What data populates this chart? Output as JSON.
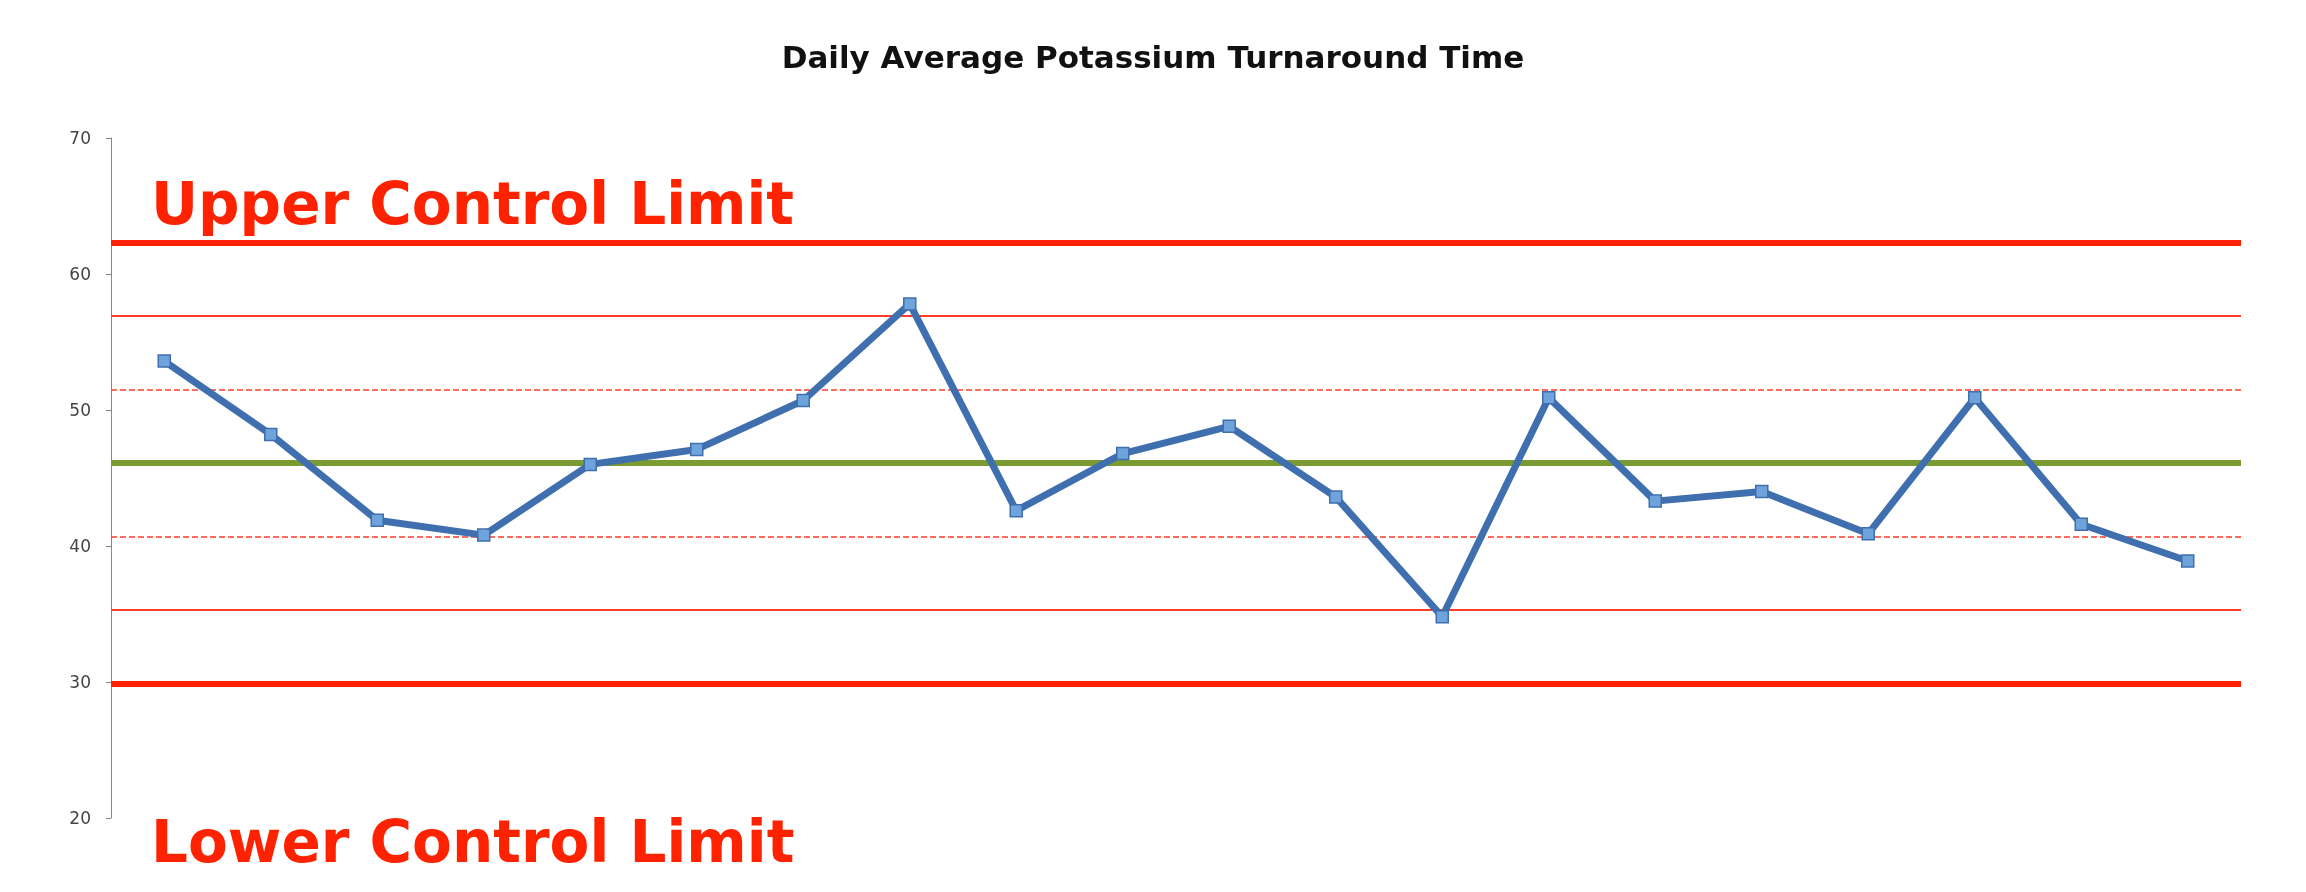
{
  "chart_data": {
    "type": "line",
    "title": "Daily Average Potassium Turnaround Time",
    "categories": [
      null,
      null,
      null,
      null,
      null,
      null,
      null,
      null,
      null,
      null,
      null,
      null,
      null,
      null,
      null,
      null,
      null,
      null,
      null,
      null
    ],
    "series": [
      {
        "color": "#3f6fae",
        "values": [
          53.6,
          48.2,
          41.9,
          40.8,
          46.0,
          47.1,
          50.7,
          57.8,
          42.6,
          46.8,
          48.8,
          43.6,
          34.8,
          50.9,
          43.3,
          44.0,
          40.9,
          50.9,
          41.6,
          38.9
        ]
      }
    ],
    "ylim": [
      20,
      70
    ],
    "yticks": [
      20,
      30,
      40,
      50,
      60,
      70
    ],
    "grid": false,
    "marker": "square",
    "line_style": "solid",
    "ref_lines": [
      {
        "axis": "y",
        "value": 62.3,
        "label": "Upper Control Limit",
        "color": "#ff2200",
        "line_style": "solid"
      },
      {
        "axis": "y",
        "value": 56.9,
        "label": null,
        "color": "#ff3b2a",
        "line_style": "solid"
      },
      {
        "axis": "y",
        "value": 51.5,
        "label": null,
        "color": "#ff3b2a",
        "line_style": "dashed"
      },
      {
        "axis": "y",
        "value": 46.1,
        "label": null,
        "color": "#7a9a32",
        "line_style": "solid"
      },
      {
        "axis": "y",
        "value": 40.7,
        "label": null,
        "color": "#ff3b2a",
        "line_style": "dashed"
      },
      {
        "axis": "y",
        "value": 35.3,
        "label": null,
        "color": "#ff3b2a",
        "line_style": "solid"
      },
      {
        "axis": "y",
        "value": 29.9,
        "label": "Lower Control Limit",
        "color": "#ff2200",
        "line_style": "solid"
      }
    ]
  }
}
